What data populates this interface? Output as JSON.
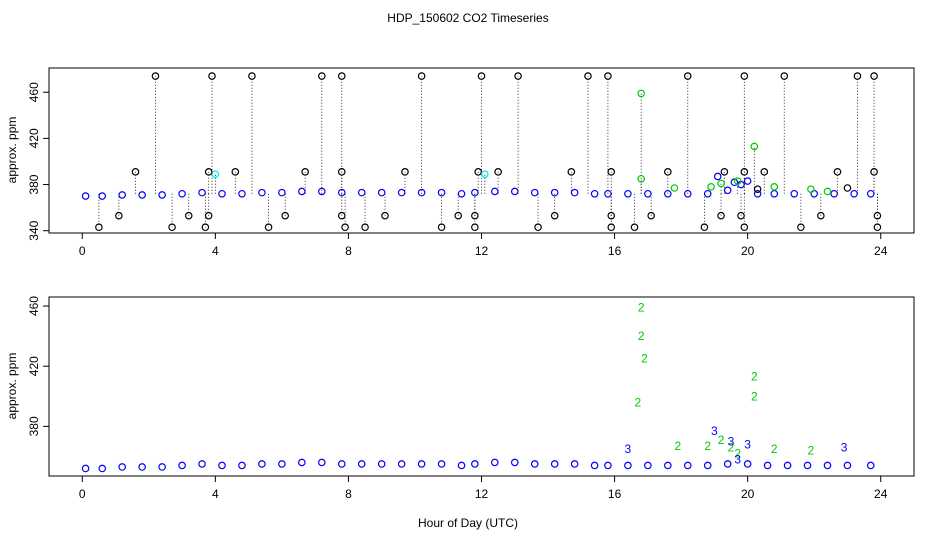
{
  "page_title": "HDP_150602  CO2 Timeseries",
  "x_axis_label": "Hour of Day (UTC)",
  "colors": {
    "black": "#000000",
    "blue": "#0000ff",
    "cyan": "#00e5ee",
    "green": "#00cc00"
  },
  "chart_data": [
    {
      "type": "scatter",
      "panel": "top",
      "title": "",
      "xlabel": "",
      "ylabel": "approx. ppm",
      "xlim": [
        -1,
        25
      ],
      "ylim": [
        338,
        481
      ],
      "x_ticks": [
        "0",
        "4",
        "8",
        "12",
        "16",
        "20",
        "24"
      ],
      "y_ticks": [
        "340",
        "380",
        "420",
        "460"
      ],
      "grid": false,
      "series": [
        {
          "marker": "circle",
          "color": "blue",
          "points": [
            [
              0.1,
              370
            ],
            [
              0.6,
              370
            ],
            [
              1.2,
              371
            ],
            [
              1.8,
              371
            ],
            [
              2.4,
              371
            ],
            [
              3.0,
              372
            ],
            [
              3.6,
              373
            ],
            [
              4.2,
              372
            ],
            [
              4.8,
              372
            ],
            [
              5.4,
              373
            ],
            [
              6.0,
              373
            ],
            [
              6.6,
              374
            ],
            [
              7.2,
              374
            ],
            [
              7.8,
              373
            ],
            [
              8.4,
              373
            ],
            [
              9.0,
              373
            ],
            [
              9.6,
              373
            ],
            [
              10.2,
              373
            ],
            [
              10.8,
              373
            ],
            [
              11.4,
              372
            ],
            [
              11.8,
              373
            ],
            [
              12.4,
              374
            ],
            [
              13.0,
              374
            ],
            [
              13.6,
              373
            ],
            [
              14.2,
              373
            ],
            [
              14.8,
              373
            ],
            [
              15.4,
              372
            ],
            [
              15.8,
              372
            ],
            [
              16.4,
              372
            ],
            [
              17.0,
              372
            ],
            [
              17.6,
              372
            ],
            [
              18.2,
              372
            ],
            [
              18.8,
              372
            ],
            [
              19.1,
              387
            ],
            [
              19.4,
              375
            ],
            [
              19.6,
              382
            ],
            [
              19.8,
              380
            ],
            [
              20.0,
              383
            ],
            [
              20.3,
              372
            ],
            [
              20.8,
              372
            ],
            [
              21.4,
              372
            ],
            [
              22.0,
              372
            ],
            [
              22.6,
              372
            ],
            [
              23.2,
              372
            ],
            [
              23.7,
              372
            ]
          ]
        },
        {
          "marker": "circle",
          "color": "black",
          "points": [
            [
              2.2,
              474
            ],
            [
              3.9,
              474
            ],
            [
              5.1,
              474
            ],
            [
              7.2,
              474
            ],
            [
              7.8,
              474
            ],
            [
              10.2,
              474
            ],
            [
              12.0,
              474
            ],
            [
              13.1,
              474
            ],
            [
              15.2,
              474
            ],
            [
              15.8,
              474
            ],
            [
              18.2,
              474
            ],
            [
              19.9,
              474
            ],
            [
              21.1,
              474
            ],
            [
              23.3,
              474
            ],
            [
              23.8,
              474
            ],
            [
              1.6,
              391
            ],
            [
              3.8,
              391
            ],
            [
              4.6,
              391
            ],
            [
              6.7,
              391
            ],
            [
              7.8,
              391
            ],
            [
              9.7,
              391
            ],
            [
              11.9,
              391
            ],
            [
              12.5,
              391
            ],
            [
              14.7,
              391
            ],
            [
              15.9,
              391
            ],
            [
              17.6,
              391
            ],
            [
              19.3,
              391
            ],
            [
              19.9,
              391
            ],
            [
              20.5,
              391
            ],
            [
              22.7,
              391
            ],
            [
              23.8,
              391
            ],
            [
              0.5,
              343
            ],
            [
              2.7,
              343
            ],
            [
              3.7,
              343
            ],
            [
              5.6,
              343
            ],
            [
              7.9,
              343
            ],
            [
              8.5,
              343
            ],
            [
              10.8,
              343
            ],
            [
              11.8,
              343
            ],
            [
              13.7,
              343
            ],
            [
              15.9,
              343
            ],
            [
              16.6,
              343
            ],
            [
              18.7,
              343
            ],
            [
              19.9,
              343
            ],
            [
              21.6,
              343
            ],
            [
              23.9,
              343
            ],
            [
              1.1,
              353
            ],
            [
              3.2,
              353
            ],
            [
              3.8,
              353
            ],
            [
              6.1,
              353
            ],
            [
              7.8,
              353
            ],
            [
              9.1,
              353
            ],
            [
              11.3,
              353
            ],
            [
              11.8,
              353
            ],
            [
              14.2,
              353
            ],
            [
              15.9,
              353
            ],
            [
              17.1,
              353
            ],
            [
              19.2,
              353
            ],
            [
              19.8,
              353
            ],
            [
              22.2,
              353
            ],
            [
              23.9,
              353
            ],
            [
              23.0,
              377
            ],
            [
              20.3,
              376
            ]
          ]
        },
        {
          "marker": "circle",
          "color": "green",
          "points": [
            [
              16.8,
              459
            ],
            [
              20.2,
              413
            ],
            [
              16.8,
              385
            ],
            [
              17.8,
              377
            ],
            [
              18.9,
              378
            ],
            [
              19.2,
              381
            ],
            [
              19.7,
              383
            ],
            [
              20.8,
              378
            ],
            [
              21.9,
              376
            ],
            [
              22.4,
              374
            ]
          ]
        },
        {
          "marker": "circle",
          "color": "cyan",
          "points": [
            [
              4.0,
              389
            ],
            [
              12.1,
              389
            ]
          ]
        }
      ]
    },
    {
      "type": "scatter",
      "panel": "bottom",
      "title": "",
      "xlabel": "Hour of Day (UTC)",
      "ylabel": "approx. ppm",
      "xlim": [
        -1,
        25
      ],
      "ylim": [
        347,
        466
      ],
      "x_ticks": [
        "0",
        "4",
        "8",
        "12",
        "16",
        "20",
        "24"
      ],
      "y_ticks": [
        "380",
        "420",
        "460"
      ],
      "grid": false,
      "series": [
        {
          "marker": "circle",
          "color": "blue",
          "points": [
            [
              0.1,
              352
            ],
            [
              0.6,
              352
            ],
            [
              1.2,
              353
            ],
            [
              1.8,
              353
            ],
            [
              2.4,
              353
            ],
            [
              3.0,
              354
            ],
            [
              3.6,
              355
            ],
            [
              4.2,
              354
            ],
            [
              4.8,
              354
            ],
            [
              5.4,
              355
            ],
            [
              6.0,
              355
            ],
            [
              6.6,
              356
            ],
            [
              7.2,
              356
            ],
            [
              7.8,
              355
            ],
            [
              8.4,
              355
            ],
            [
              9.0,
              355
            ],
            [
              9.6,
              355
            ],
            [
              10.2,
              355
            ],
            [
              10.8,
              355
            ],
            [
              11.4,
              354
            ],
            [
              11.8,
              355
            ],
            [
              12.4,
              356
            ],
            [
              13.0,
              356
            ],
            [
              13.6,
              355
            ],
            [
              14.2,
              355
            ],
            [
              14.8,
              355
            ],
            [
              15.4,
              354
            ],
            [
              15.8,
              354
            ],
            [
              16.4,
              354
            ],
            [
              17.0,
              354
            ],
            [
              17.6,
              354
            ],
            [
              18.2,
              354
            ],
            [
              18.8,
              354
            ],
            [
              19.4,
              355
            ],
            [
              20.0,
              355
            ],
            [
              20.6,
              354
            ],
            [
              21.2,
              354
            ],
            [
              21.8,
              354
            ],
            [
              22.4,
              354
            ],
            [
              23.0,
              354
            ],
            [
              23.7,
              354
            ]
          ]
        },
        {
          "marker": "label",
          "color": "green",
          "label": "2",
          "points": [
            [
              16.8,
              459
            ],
            [
              16.8,
              440
            ],
            [
              16.9,
              425
            ],
            [
              16.7,
              396
            ],
            [
              17.9,
              367
            ],
            [
              20.2,
              413
            ],
            [
              20.2,
              400
            ],
            [
              18.8,
              367
            ],
            [
              19.2,
              371
            ],
            [
              19.5,
              366
            ],
            [
              20.8,
              365
            ],
            [
              21.9,
              364
            ],
            [
              19.7,
              362
            ]
          ]
        },
        {
          "marker": "label",
          "color": "blue",
          "label": "3",
          "points": [
            [
              19.0,
              377
            ],
            [
              20.0,
              368
            ],
            [
              22.9,
              366
            ],
            [
              19.5,
              370
            ],
            [
              16.4,
              365
            ],
            [
              19.7,
              358
            ]
          ]
        }
      ]
    }
  ]
}
